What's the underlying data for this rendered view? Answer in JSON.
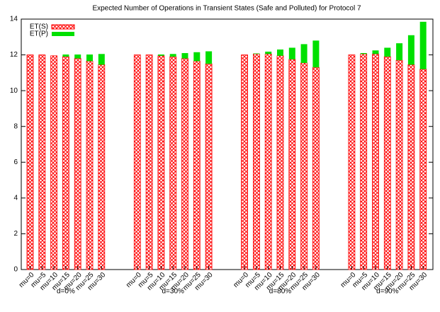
{
  "chart_data": {
    "type": "grouped-stacked-bar",
    "title": "Expected Number of Operations in Transient States (Safe and Polluted) for Protocol 7",
    "groups": [
      "d=0%",
      "d=30%",
      "d=80%",
      "d=90%"
    ],
    "categories": [
      "mu=0",
      "mu=5",
      "mu=10",
      "mu=15",
      "mu=20",
      "mu=25",
      "mu=30"
    ],
    "series": [
      {
        "name": "ET(S)",
        "color": "#ff0000",
        "values": [
          [
            12,
            12,
            11.95,
            11.9,
            11.8,
            11.65,
            11.45
          ],
          [
            12,
            12,
            11.95,
            11.9,
            11.8,
            11.65,
            11.5
          ],
          [
            12,
            12.05,
            12.05,
            11.95,
            11.75,
            11.55,
            11.3
          ],
          [
            12,
            12.05,
            12.05,
            11.9,
            11.7,
            11.45,
            11.2
          ]
        ]
      },
      {
        "name": "ET(P)",
        "color": "#00e000",
        "values": [
          [
            0,
            0,
            0,
            0.12,
            0.22,
            0.37,
            0.6
          ],
          [
            0,
            0,
            0.07,
            0.15,
            0.3,
            0.5,
            0.7
          ],
          [
            0,
            0.03,
            0.13,
            0.35,
            0.65,
            1.05,
            1.5
          ],
          [
            0,
            0.05,
            0.2,
            0.5,
            0.95,
            1.65,
            2.65
          ]
        ]
      }
    ],
    "ylim": [
      0,
      14
    ],
    "yticks": [
      0,
      2,
      4,
      6,
      8,
      10,
      12,
      14
    ],
    "legend": "top-left"
  }
}
